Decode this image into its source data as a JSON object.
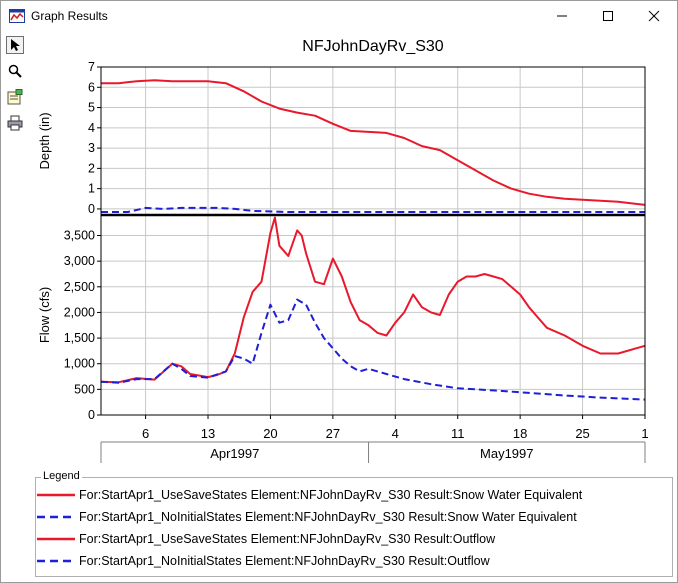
{
  "window": {
    "title": "Graph Results",
    "minimize_glyph": "—",
    "maximize_glyph": "☐",
    "close_glyph": "✕"
  },
  "toolbar": {
    "items": [
      {
        "icon": "pointer-icon",
        "active": true
      },
      {
        "icon": "zoom-icon",
        "active": false
      },
      {
        "icon": "properties-icon",
        "active": false
      },
      {
        "icon": "print-icon",
        "active": false
      }
    ]
  },
  "legend": {
    "title": "Legend",
    "items": [
      {
        "label": "For:StartApr1_UseSaveStates Element:NFJohnDayRv_S30 Result:Snow Water Equivalent",
        "color": "#e8192c",
        "dash": "solid"
      },
      {
        "label": "For:StartApr1_NoInitialStates Element:NFJohnDayRv_S30 Result:Snow Water Equivalent",
        "color": "#1f1fd6",
        "dash": "dashed"
      },
      {
        "label": "For:StartApr1_UseSaveStates Element:NFJohnDayRv_S30 Result:Outflow",
        "color": "#e8192c",
        "dash": "solid"
      },
      {
        "label": "For:StartApr1_NoInitialStates Element:NFJohnDayRv_S30 Result:Outflow",
        "color": "#1f1fd6",
        "dash": "dashed"
      }
    ]
  },
  "chart_data": {
    "type": "line",
    "title": "NFJohnDayRv_S30",
    "x_axis": {
      "range": [
        "1997-04-01",
        "1997-06-01"
      ],
      "ticks": [
        {
          "date": "1997-04-06",
          "label": "6"
        },
        {
          "date": "1997-04-13",
          "label": "13"
        },
        {
          "date": "1997-04-20",
          "label": "20"
        },
        {
          "date": "1997-04-27",
          "label": "27"
        },
        {
          "date": "1997-05-04",
          "label": "4"
        },
        {
          "date": "1997-05-11",
          "label": "11"
        },
        {
          "date": "1997-05-18",
          "label": "18"
        },
        {
          "date": "1997-05-25",
          "label": "25"
        },
        {
          "date": "1997-06-01",
          "label": "1"
        }
      ],
      "months": [
        {
          "label": "Apr1997",
          "start": "1997-04-01",
          "end": "1997-05-01"
        },
        {
          "label": "May1997",
          "start": "1997-05-01",
          "end": "1997-06-01"
        }
      ]
    },
    "panels": [
      {
        "ylabel": "Depth (in)",
        "ylim": [
          -0.3,
          7
        ],
        "yticks": [
          0,
          1,
          2,
          3,
          4,
          5,
          6,
          7
        ],
        "ytick_labels": [
          "0",
          "1",
          "2",
          "3",
          "4",
          "5",
          "6",
          "7"
        ],
        "grid": true,
        "series": [
          {
            "color": "#e8192c",
            "dash": "solid",
            "x": [
              "1997-04-01",
              "1997-04-03",
              "1997-04-05",
              "1997-04-07",
              "1997-04-09",
              "1997-04-11",
              "1997-04-13",
              "1997-04-15",
              "1997-04-17",
              "1997-04-19",
              "1997-04-21",
              "1997-04-23",
              "1997-04-25",
              "1997-04-27",
              "1997-04-29",
              "1997-05-01",
              "1997-05-03",
              "1997-05-05",
              "1997-05-07",
              "1997-05-09",
              "1997-05-11",
              "1997-05-13",
              "1997-05-15",
              "1997-05-17",
              "1997-05-19",
              "1997-05-21",
              "1997-05-23",
              "1997-05-25",
              "1997-05-27",
              "1997-05-29",
              "1997-06-01"
            ],
            "y": [
              6.2,
              6.2,
              6.3,
              6.35,
              6.3,
              6.3,
              6.3,
              6.2,
              5.8,
              5.3,
              4.95,
              4.75,
              4.6,
              4.2,
              3.85,
              3.8,
              3.75,
              3.5,
              3.1,
              2.9,
              2.4,
              1.9,
              1.4,
              1.0,
              0.75,
              0.6,
              0.5,
              0.45,
              0.4,
              0.35,
              0.2
            ]
          },
          {
            "color": "#1f1fd6",
            "dash": "dashed",
            "x": [
              "1997-04-01",
              "1997-04-04",
              "1997-04-06",
              "1997-04-08",
              "1997-04-10",
              "1997-04-14",
              "1997-04-16",
              "1997-04-18",
              "1997-04-22",
              "1997-05-05",
              "1997-05-20",
              "1997-06-01"
            ],
            "y": [
              -0.15,
              -0.15,
              0.05,
              0,
              0.05,
              0.05,
              0,
              -0.1,
              -0.15,
              -0.15,
              -0.15,
              -0.15
            ]
          }
        ]
      },
      {
        "ylabel": "Flow (cfs)",
        "ylim": [
          0,
          3900
        ],
        "yticks": [
          0,
          500,
          1000,
          1500,
          2000,
          2500,
          3000,
          3500
        ],
        "ytick_labels": [
          "0",
          "500",
          "1,000",
          "1,500",
          "2,000",
          "2,500",
          "3,000",
          "3,500"
        ],
        "grid": true,
        "series": [
          {
            "color": "#e8192c",
            "dash": "solid",
            "x": [
              "1997-04-01",
              "1997-04-03",
              "1997-04-05",
              "1997-04-07",
              "1997-04-09",
              "1997-04-10",
              "1997-04-11",
              "1997-04-13",
              "1997-04-14",
              "1997-04-15",
              "1997-04-16",
              "1997-04-17",
              "1997-04-18",
              "1997-04-19",
              "1997-04-20",
              "1997-04-20.5",
              "1997-04-21",
              "1997-04-22",
              "1997-04-23",
              "1997-04-23.5",
              "1997-04-24",
              "1997-04-25",
              "1997-04-26",
              "1997-04-27",
              "1997-04-28",
              "1997-04-29",
              "1997-04-30",
              "1997-05-01",
              "1997-05-02",
              "1997-05-03",
              "1997-05-04",
              "1997-05-05",
              "1997-05-06",
              "1997-05-07",
              "1997-05-08",
              "1997-05-09",
              "1997-05-10",
              "1997-05-11",
              "1997-05-12",
              "1997-05-13",
              "1997-05-14",
              "1997-05-15",
              "1997-05-16",
              "1997-05-17",
              "1997-05-18",
              "1997-05-19",
              "1997-05-20",
              "1997-05-21",
              "1997-05-23",
              "1997-05-25",
              "1997-05-27",
              "1997-05-29",
              "1997-05-31",
              "1997-06-01"
            ],
            "y": [
              650,
              640,
              720,
              690,
              1000,
              950,
              800,
              740,
              780,
              850,
              1200,
              1900,
              2400,
              2600,
              3550,
              3850,
              3300,
              3100,
              3600,
              3500,
              3150,
              2600,
              2550,
              3050,
              2700,
              2200,
              1850,
              1750,
              1600,
              1550,
              1800,
              2000,
              2350,
              2100,
              2000,
              1950,
              2350,
              2600,
              2700,
              2700,
              2750,
              2700,
              2650,
              2500,
              2350,
              2100,
              1900,
              1700,
              1550,
              1350,
              1200,
              1200,
              1300,
              1350
            ]
          },
          {
            "color": "#1f1fd6",
            "dash": "dashed",
            "x": [
              "1997-04-01",
              "1997-04-03",
              "1997-04-05",
              "1997-04-07",
              "1997-04-09",
              "1997-04-10",
              "1997-04-11",
              "1997-04-13",
              "1997-04-15",
              "1997-04-16",
              "1997-04-17",
              "1997-04-18",
              "1997-04-19",
              "1997-04-20",
              "1997-04-21",
              "1997-04-22",
              "1997-04-23",
              "1997-04-24",
              "1997-04-25",
              "1997-04-26",
              "1997-04-27",
              "1997-04-28",
              "1997-04-29",
              "1997-04-30",
              "1997-05-01",
              "1997-05-02",
              "1997-05-03",
              "1997-05-05",
              "1997-05-08",
              "1997-05-11",
              "1997-05-15",
              "1997-05-19",
              "1997-05-23",
              "1997-05-27",
              "1997-06-01"
            ],
            "y": [
              650,
              630,
              700,
              700,
              1000,
              900,
              760,
              730,
              850,
              1150,
              1100,
              1000,
              1600,
              2150,
              1800,
              1850,
              2250,
              2150,
              1800,
              1500,
              1300,
              1100,
              950,
              850,
              900,
              850,
              800,
              700,
              600,
              520,
              480,
              430,
              380,
              340,
              300
            ]
          }
        ]
      }
    ]
  }
}
